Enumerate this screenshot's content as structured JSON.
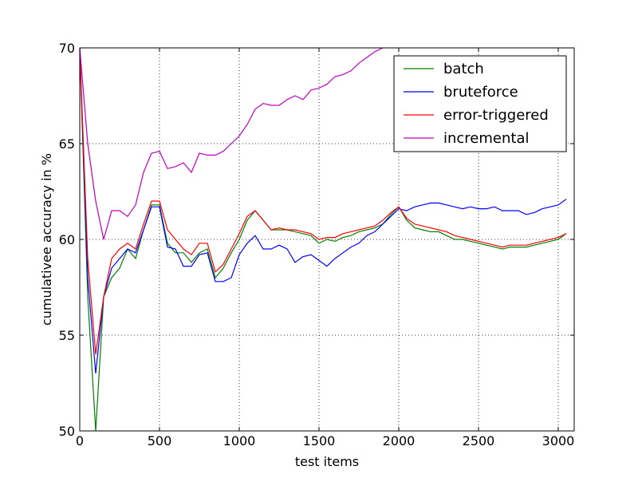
{
  "chart_data": {
    "type": "line",
    "xlabel": "test items",
    "ylabel": "cumulativee accuracy in %",
    "xlim": [
      0,
      3100
    ],
    "ylim": [
      50,
      70
    ],
    "xticks": [
      0,
      500,
      1000,
      1500,
      2000,
      2500,
      3000
    ],
    "yticks": [
      50,
      55,
      60,
      65,
      70
    ],
    "grid": true,
    "legend": "upper right",
    "x": [
      0,
      50,
      100,
      150,
      200,
      250,
      300,
      350,
      400,
      450,
      500,
      550,
      600,
      650,
      700,
      750,
      800,
      850,
      900,
      950,
      1000,
      1050,
      1100,
      1150,
      1200,
      1250,
      1300,
      1350,
      1400,
      1450,
      1500,
      1550,
      1600,
      1650,
      1700,
      1750,
      1800,
      1850,
      1900,
      1950,
      2000,
      2050,
      2100,
      2150,
      2200,
      2250,
      2300,
      2350,
      2400,
      2450,
      2500,
      2550,
      2600,
      2650,
      2700,
      2750,
      2800,
      2850,
      2900,
      2950,
      3000,
      3050
    ],
    "series": [
      {
        "name": "batch",
        "color": "#008000",
        "values": [
          70,
          57,
          50,
          57,
          58,
          58.5,
          59.5,
          59,
          60.5,
          61.8,
          61.8,
          59.8,
          59.3,
          59.3,
          58.8,
          59.3,
          59.5,
          58,
          58.5,
          59.3,
          60,
          61,
          61.5,
          61,
          60.5,
          60.5,
          60.5,
          60.4,
          60.3,
          60.2,
          59.8,
          60,
          59.9,
          60.1,
          60.2,
          60.4,
          60.5,
          60.6,
          60.8,
          61.3,
          61.7,
          61,
          60.6,
          60.5,
          60.4,
          60.4,
          60.2,
          60,
          60,
          59.9,
          59.8,
          59.7,
          59.6,
          59.5,
          59.6,
          59.6,
          59.6,
          59.7,
          59.8,
          59.9,
          60,
          60.3
        ]
      },
      {
        "name": "bruteforce",
        "color": "#0000ff",
        "values": [
          70,
          58,
          53,
          57,
          58.5,
          59,
          59.5,
          59.3,
          60.5,
          61.7,
          61.7,
          59.6,
          59.5,
          58.6,
          58.6,
          59.2,
          59.3,
          57.8,
          57.8,
          58,
          59.2,
          59.8,
          60.2,
          59.5,
          59.5,
          59.7,
          59.5,
          58.8,
          59.1,
          59.2,
          58.9,
          58.6,
          59,
          59.3,
          59.6,
          59.8,
          60.2,
          60.4,
          60.8,
          61.2,
          61.6,
          61.5,
          61.7,
          61.8,
          61.9,
          61.9,
          61.8,
          61.7,
          61.6,
          61.7,
          61.6,
          61.6,
          61.7,
          61.5,
          61.5,
          61.5,
          61.3,
          61.4,
          61.6,
          61.7,
          61.8,
          62.1
        ]
      },
      {
        "name": "error-triggered",
        "color": "#ff0000",
        "values": [
          70,
          59,
          54,
          57,
          59,
          59.5,
          59.8,
          59.5,
          60.8,
          62,
          62,
          60.5,
          60,
          59.5,
          59.2,
          59.8,
          59.8,
          58.3,
          58.7,
          59.5,
          60.3,
          61.2,
          61.5,
          61,
          60.5,
          60.6,
          60.5,
          60.5,
          60.4,
          60.3,
          60,
          60.1,
          60.1,
          60.3,
          60.4,
          60.5,
          60.6,
          60.7,
          61,
          61.4,
          61.7,
          61.1,
          60.8,
          60.7,
          60.6,
          60.5,
          60.4,
          60.2,
          60.1,
          60,
          59.9,
          59.8,
          59.7,
          59.6,
          59.7,
          59.7,
          59.7,
          59.8,
          59.9,
          60,
          60.1,
          60.3
        ]
      },
      {
        "name": "incremental",
        "color": "#bf00bf",
        "values": [
          70,
          65,
          62,
          60,
          61.5,
          61.5,
          61.2,
          61.8,
          63.5,
          64.5,
          64.6,
          63.7,
          63.8,
          64,
          63.5,
          64.5,
          64.4,
          64.4,
          64.6,
          65,
          65.4,
          66,
          66.8,
          67.1,
          67,
          67,
          67.3,
          67.5,
          67.3,
          67.8,
          67.9,
          68.1,
          68.5,
          68.6,
          68.8,
          69.2,
          69.5,
          69.8,
          70,
          null,
          null,
          null,
          null,
          null,
          null,
          null,
          null,
          null,
          null,
          null,
          null,
          null,
          null,
          null,
          null,
          null,
          null,
          null,
          null,
          null,
          null,
          null
        ]
      }
    ]
  }
}
